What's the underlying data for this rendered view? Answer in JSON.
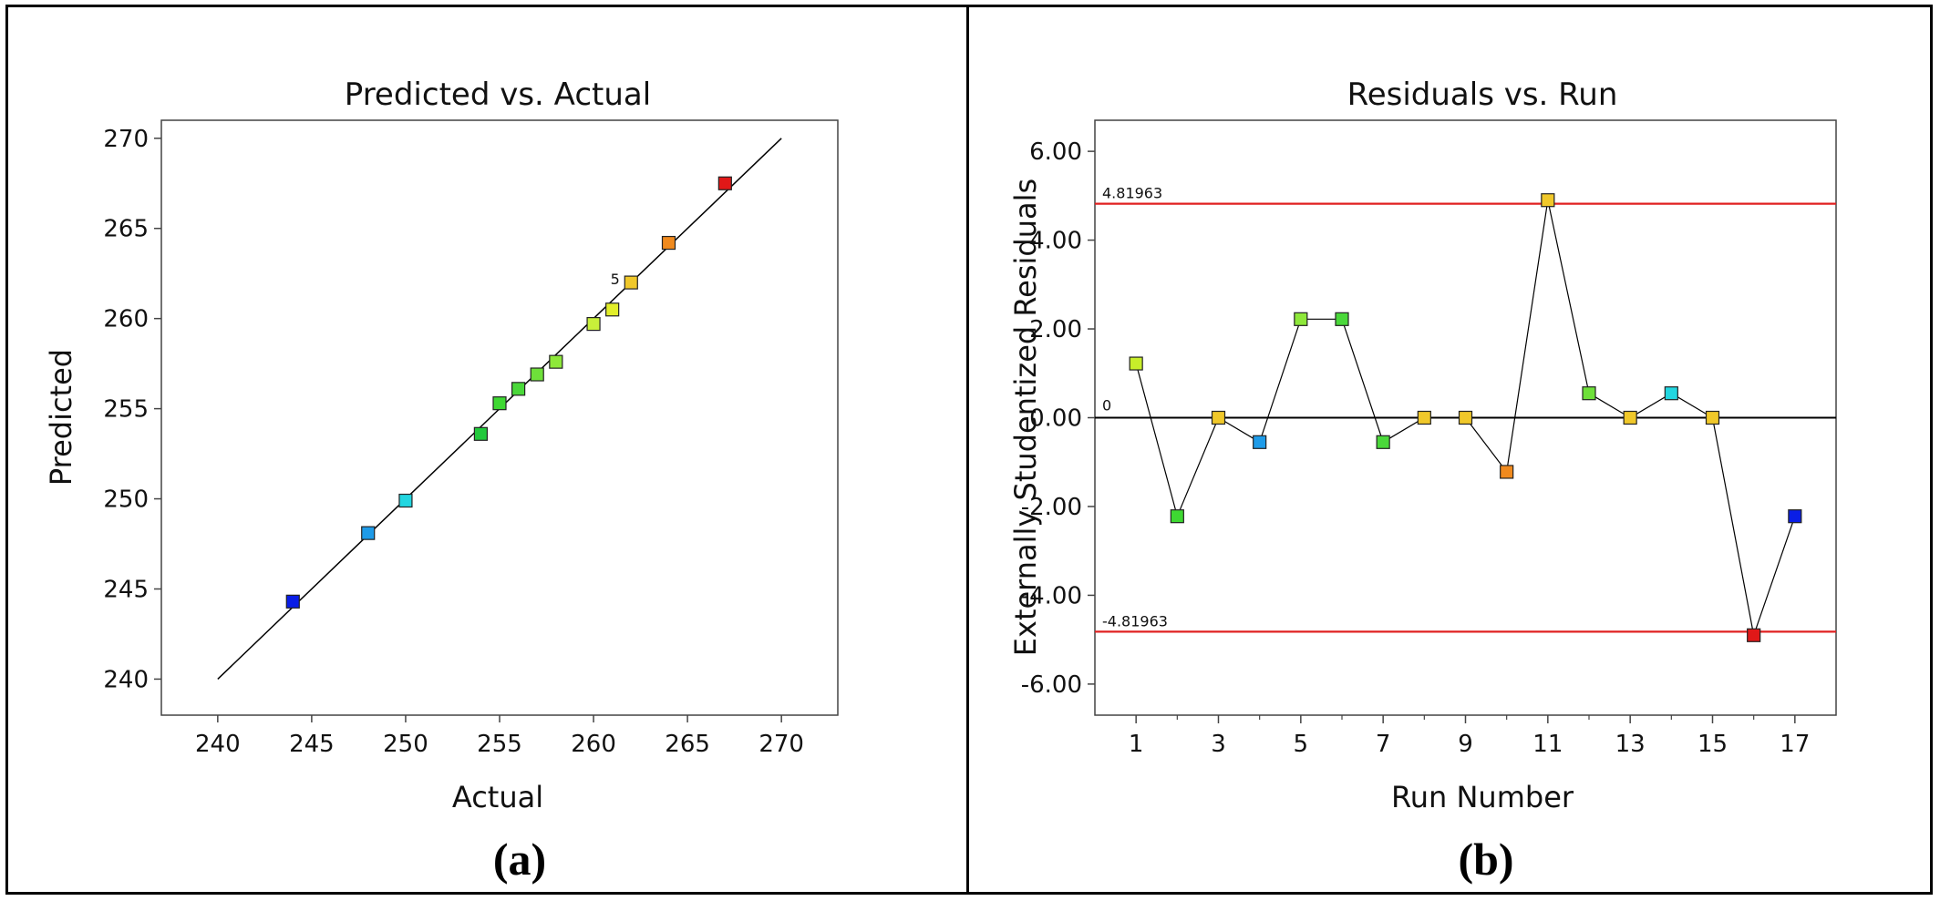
{
  "chart_data": [
    {
      "type": "scatter",
      "title": "Predicted vs. Actual",
      "xlabel": "Actual",
      "ylabel": "Predicted",
      "panel_label": "(a)",
      "xlim": [
        237,
        273
      ],
      "ylim": [
        238,
        271
      ],
      "xticks": [
        240,
        245,
        250,
        255,
        260,
        265,
        270
      ],
      "yticks": [
        240,
        245,
        250,
        255,
        260,
        265,
        270
      ],
      "reference_line": {
        "from": [
          240,
          240
        ],
        "to": [
          270,
          270
        ]
      },
      "points": [
        {
          "x": 244,
          "y": 244.3,
          "color": "#0a1ee6"
        },
        {
          "x": 248,
          "y": 248.1,
          "color": "#1e9be8"
        },
        {
          "x": 250,
          "y": 249.9,
          "color": "#22d6e0"
        },
        {
          "x": 254,
          "y": 253.6,
          "color": "#22c93c"
        },
        {
          "x": 255,
          "y": 255.3,
          "color": "#3ed832"
        },
        {
          "x": 256,
          "y": 256.1,
          "color": "#4ad83a"
        },
        {
          "x": 257,
          "y": 256.9,
          "color": "#6ee03a"
        },
        {
          "x": 258,
          "y": 257.6,
          "color": "#8ee83a"
        },
        {
          "x": 260,
          "y": 259.7,
          "color": "#c8f03a"
        },
        {
          "x": 261,
          "y": 260.5,
          "color": "#e2ee2a"
        },
        {
          "x": 262,
          "y": 262.0,
          "color": "#f0c82a"
        },
        {
          "x": 264,
          "y": 264.2,
          "color": "#f08a1e"
        },
        {
          "x": 267,
          "y": 267.5,
          "color": "#e01818"
        }
      ],
      "annotation": {
        "text": "5",
        "x": 261.2,
        "y": 262.0
      }
    },
    {
      "type": "line",
      "title": "Residuals vs. Run",
      "xlabel": "Run Number",
      "ylabel": "Externally Studentized Residuals",
      "panel_label": "(b)",
      "xlim": [
        0,
        18
      ],
      "ylim": [
        -6.7,
        6.7
      ],
      "xticks": [
        1,
        3,
        5,
        7,
        9,
        11,
        13,
        15,
        17
      ],
      "minor_xticks": [
        2,
        4,
        6,
        8,
        10,
        12,
        14,
        16
      ],
      "yticks": [
        6.0,
        4.0,
        2.0,
        0.0,
        -2.0,
        -4.0,
        -6.0
      ],
      "ytick_labels": [
        "6.00",
        "4.00",
        "2.00",
        "0.00",
        "-2.00",
        "-4.00",
        "-6.00"
      ],
      "limits": [
        {
          "value": 4.81963,
          "label": "4.81963",
          "color": "#e02020"
        },
        {
          "value": -4.81963,
          "label": "-4.81963",
          "color": "#e02020"
        }
      ],
      "zero_line": {
        "value": 0,
        "label": "0",
        "color": "#000000"
      },
      "points": [
        {
          "x": 1,
          "y": 1.22,
          "color": "#c8ee2a"
        },
        {
          "x": 2,
          "y": -2.22,
          "color": "#3ed832"
        },
        {
          "x": 3,
          "y": 0.0,
          "color": "#f0c82a"
        },
        {
          "x": 4,
          "y": -0.55,
          "color": "#1e9be8"
        },
        {
          "x": 5,
          "y": 2.22,
          "color": "#8ee83a"
        },
        {
          "x": 6,
          "y": 2.22,
          "color": "#4ad83a"
        },
        {
          "x": 7,
          "y": -0.55,
          "color": "#4ad83a"
        },
        {
          "x": 8,
          "y": 0.0,
          "color": "#f0c82a"
        },
        {
          "x": 9,
          "y": 0.0,
          "color": "#f0c82a"
        },
        {
          "x": 10,
          "y": -1.22,
          "color": "#f08a1e"
        },
        {
          "x": 11,
          "y": 4.9,
          "color": "#f0c82a"
        },
        {
          "x": 12,
          "y": 0.55,
          "color": "#6ee03a"
        },
        {
          "x": 13,
          "y": 0.0,
          "color": "#f0c82a"
        },
        {
          "x": 14,
          "y": 0.55,
          "color": "#22d6e0"
        },
        {
          "x": 15,
          "y": 0.0,
          "color": "#f0c82a"
        },
        {
          "x": 16,
          "y": -4.9,
          "color": "#e01818"
        },
        {
          "x": 17,
          "y": -2.22,
          "color": "#0a1ee6"
        }
      ]
    }
  ]
}
